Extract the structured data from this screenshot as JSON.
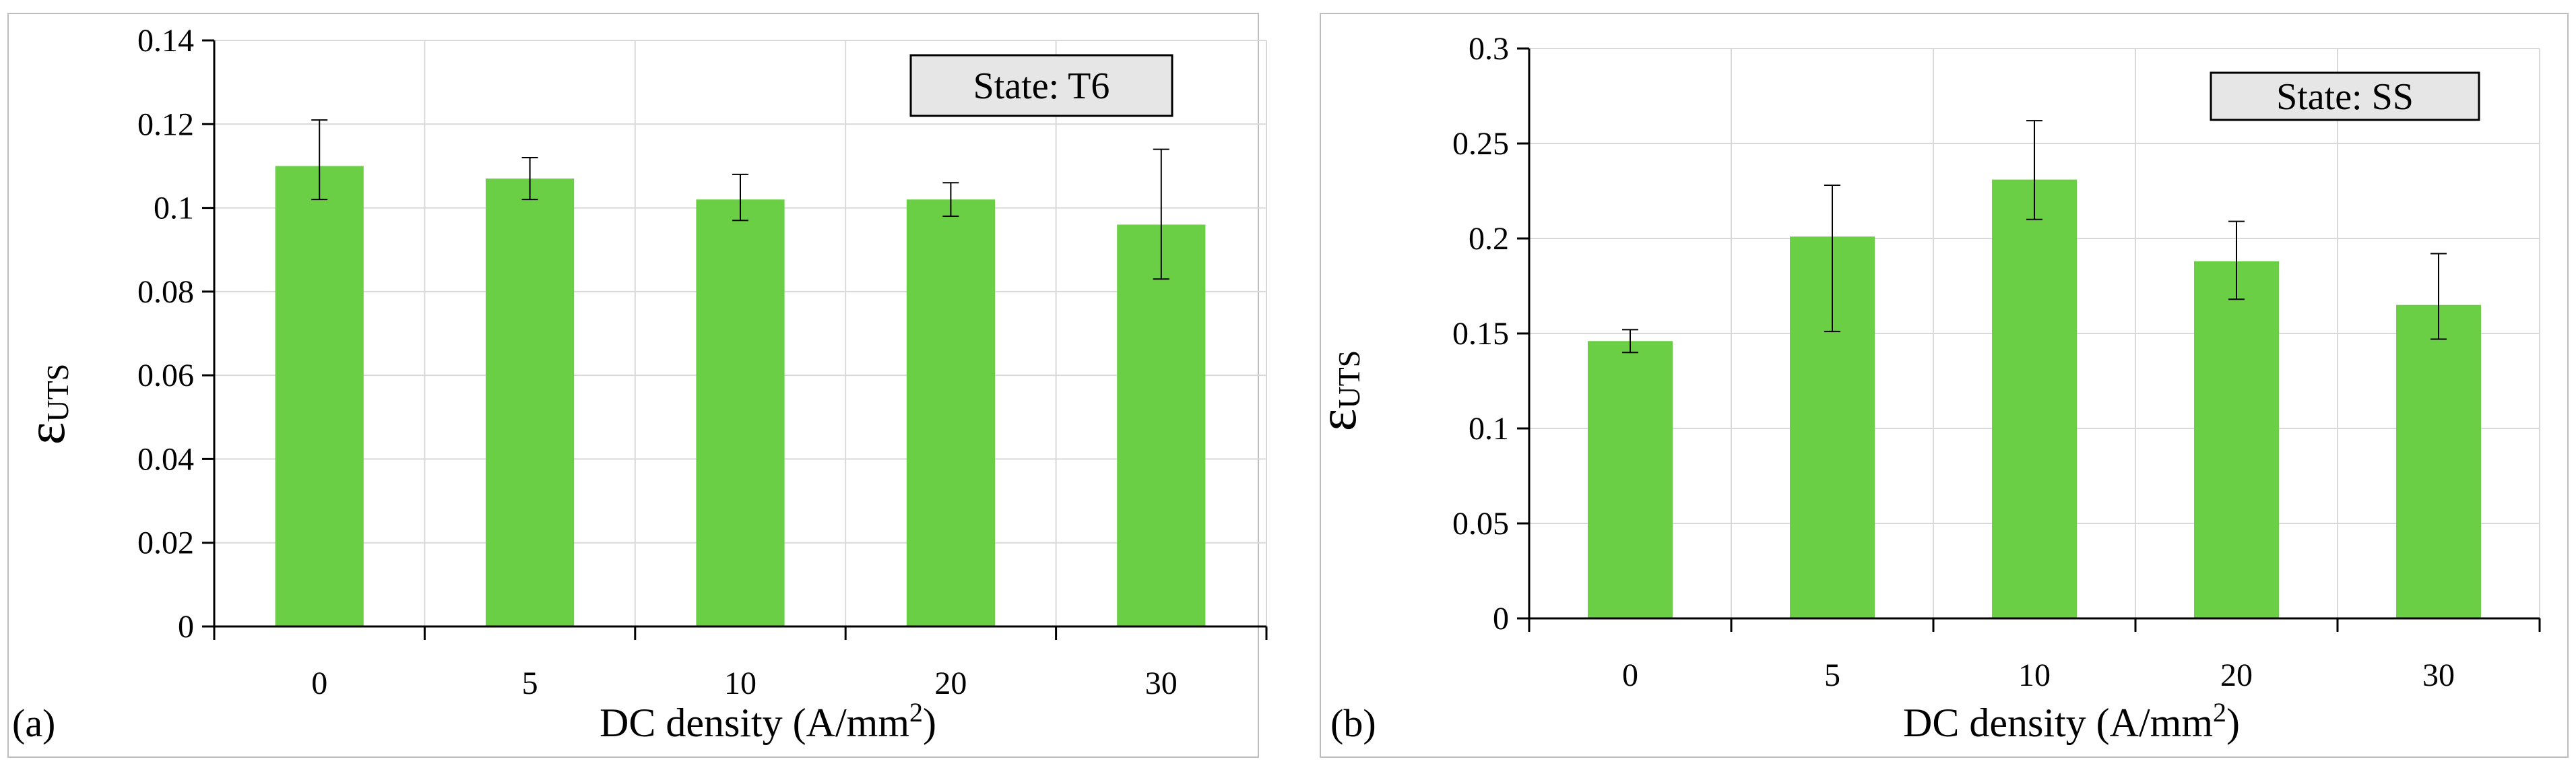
{
  "chart_data": [
    {
      "type": "bar",
      "panel_label": "(a)",
      "state_label": "State: T6",
      "xlabel": "DC density (A/mm",
      "xlabel_sup": "2",
      "xlabel_close": ")",
      "ylabel_main": "ε",
      "ylabel_sub": "UTS",
      "categories": [
        "0",
        "5",
        "10",
        "20",
        "30"
      ],
      "values": [
        0.11,
        0.107,
        0.102,
        0.102,
        0.096
      ],
      "err_low": [
        0.102,
        0.102,
        0.097,
        0.098,
        0.083
      ],
      "err_high": [
        0.121,
        0.112,
        0.108,
        0.106,
        0.114
      ],
      "ylim": [
        0,
        0.14
      ],
      "yticks": [
        0,
        0.02,
        0.04,
        0.06,
        0.08,
        0.1,
        0.12,
        0.14
      ],
      "ytick_labels": [
        "0",
        "0.02",
        "0.04",
        "0.06",
        "0.08",
        "0.1",
        "0.12",
        "0.14"
      ],
      "grid": true,
      "bar_color": "#6ACF45"
    },
    {
      "type": "bar",
      "panel_label": "(b)",
      "state_label": "State: SS",
      "xlabel": "DC density (A/mm",
      "xlabel_sup": "2",
      "xlabel_close": ")",
      "ylabel_main": "ε",
      "ylabel_sub": "UTS",
      "categories": [
        "0",
        "5",
        "10",
        "20",
        "30"
      ],
      "values": [
        0.146,
        0.201,
        0.231,
        0.188,
        0.165
      ],
      "err_low": [
        0.14,
        0.151,
        0.21,
        0.168,
        0.147
      ],
      "err_high": [
        0.152,
        0.228,
        0.262,
        0.209,
        0.192
      ],
      "ylim": [
        0,
        0.3
      ],
      "yticks": [
        0,
        0.05,
        0.1,
        0.15,
        0.2,
        0.25,
        0.3
      ],
      "ytick_labels": [
        "0",
        "0.05",
        "0.1",
        "0.15",
        "0.2",
        "0.25",
        "0.3"
      ],
      "grid": true,
      "bar_color": "#6ACF45"
    }
  ]
}
